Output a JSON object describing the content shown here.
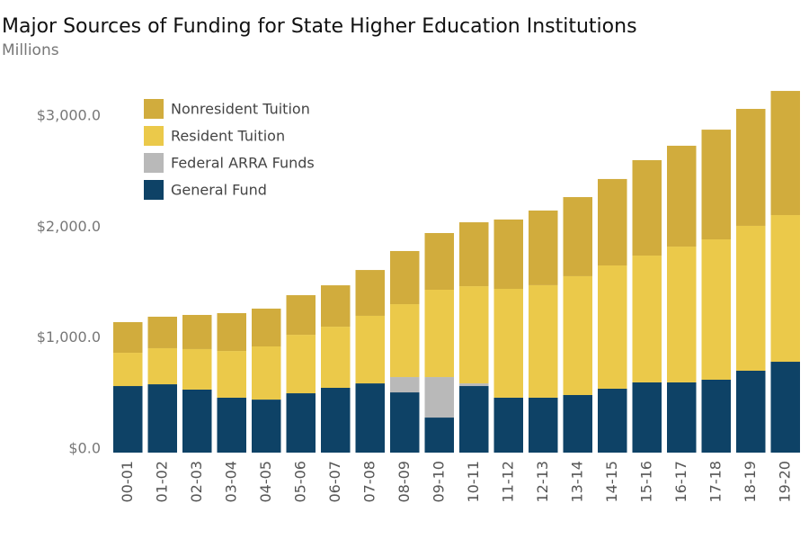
{
  "chart_data": {
    "type": "stacked-bar",
    "title": "Major Sources of Funding for State Higher Education Institutions",
    "subtitle": "Millions",
    "categories": [
      "00-01",
      "01-02",
      "02-03",
      "03-04",
      "04-05",
      "05-06",
      "06-07",
      "07-08",
      "08-09",
      "09-10",
      "10-11",
      "11-12",
      "12-13",
      "13-14",
      "14-15",
      "15-16",
      "16-17",
      "17-18",
      "18-19",
      "19-20"
    ],
    "series": [
      {
        "name": "General Fund",
        "color": "#0e4266",
        "values": [
          600,
          616,
          568,
          495,
          478,
          535,
          584,
          624,
          543,
          316,
          600,
          495,
          495,
          519,
          576,
          633,
          633,
          657,
          738,
          819
        ]
      },
      {
        "name": "Federal ARRA Funds",
        "color": "#b9b9b9",
        "values": [
          0,
          0,
          0,
          0,
          0,
          0,
          0,
          0,
          138,
          365,
          24,
          0,
          0,
          0,
          0,
          0,
          0,
          0,
          0,
          0
        ]
      },
      {
        "name": "Resident Tuition",
        "color": "#ebc94a",
        "values": [
          300,
          325,
          365,
          421,
          479,
          527,
          551,
          609,
          657,
          787,
          876,
          981,
          1014,
          1071,
          1111,
          1143,
          1224,
          1265,
          1306,
          1322
        ]
      },
      {
        "name": "Nonresident Tuition",
        "color": "#d1ac3d",
        "values": [
          276,
          284,
          308,
          341,
          341,
          357,
          373,
          413,
          479,
          511,
          576,
          625,
          673,
          713,
          779,
          860,
          909,
          989,
          1054,
          1119
        ]
      }
    ],
    "ylim": [
      0,
      3500
    ],
    "yticks": [
      {
        "value": 0,
        "label": "$0.0"
      },
      {
        "value": 1000,
        "label": "$1,000.0"
      },
      {
        "value": 2000,
        "label": "$2,000.0"
      },
      {
        "value": 3000,
        "label": "$3,000.0"
      }
    ]
  }
}
